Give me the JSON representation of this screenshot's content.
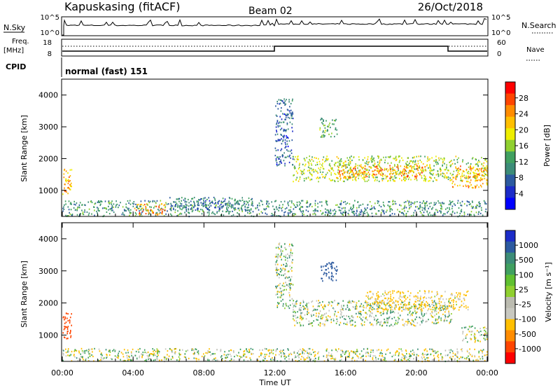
{
  "header": {
    "station": "Kapuskasing (fitACF)",
    "beam": "Beam 02",
    "date": "26/Oct/2018"
  },
  "status_panels": {
    "nsky_label": "N.Sky",
    "nsky_ticks": [
      "10^5",
      "10^0"
    ],
    "nsearch_label": "N.Search",
    "nsearch_ticks": [
      "10^5",
      "10^0"
    ],
    "freq_label": "Freq.",
    "freq_unit": "[MHz]",
    "freq_ticks": [
      "18",
      "8"
    ],
    "nave_label": "Nave",
    "nave_ticks": [
      "60",
      "0"
    ],
    "cpid_label": "CPID",
    "cpid_text": "normal (fast) 151"
  },
  "xaxis": {
    "label": "Time UT",
    "ticks": [
      "00:00",
      "04:00",
      "08:00",
      "12:00",
      "16:00",
      "20:00",
      "00:00"
    ]
  },
  "power_panel": {
    "ylabel": "Slant Range [km]",
    "yticks": [
      "4000",
      "3000",
      "2000",
      "1000"
    ],
    "colorbar_label": "Power [dB]",
    "colorbar_ticks": [
      "28",
      "24",
      "20",
      "16",
      "12",
      "8",
      "4"
    ],
    "colors": [
      "#ff0000",
      "#ff4500",
      "#ff8c00",
      "#ffbf00",
      "#eeee00",
      "#90d030",
      "#40a060",
      "#3c8c78",
      "#2c5aa0",
      "#1c2cc8",
      "#0000ff"
    ]
  },
  "velocity_panel": {
    "ylabel": "Slant Range [km]",
    "yticks": [
      "4000",
      "3000",
      "2000",
      "1000"
    ],
    "colorbar_label": "Velocity [m s⁻¹]",
    "colorbar_ticks": [
      "1000",
      "500",
      "100",
      "25",
      "-25",
      "-100",
      "-500",
      "-1000"
    ],
    "colors": [
      "#1c2cc8",
      "#2c5aa0",
      "#3c8c78",
      "#40a060",
      "#60c030",
      "#90d030",
      "#bbbbb0",
      "#c8c8c0",
      "#ffbf00",
      "#ff8c00",
      "#ff4500",
      "#ff0000"
    ]
  },
  "chart_data": [
    {
      "type": "heatmap",
      "title": "Kapuskasing (fitACF) Beam 02 26/Oct/2018",
      "variable": "Power",
      "unit": "dB",
      "xlabel": "Time UT",
      "ylabel": "Slant Range [km]",
      "xlim": [
        0,
        24
      ],
      "ylim": [
        180,
        4500
      ],
      "clim": [
        0,
        30
      ],
      "echo_regions": [
        {
          "t_start": 0.0,
          "t_end": 0.5,
          "r_min": 900,
          "r_max": 1700,
          "power": 22
        },
        {
          "t_start": 0.0,
          "t_end": 24.0,
          "r_min": 200,
          "r_max": 700,
          "power": 10
        },
        {
          "t_start": 4.0,
          "t_end": 5.8,
          "r_min": 250,
          "r_max": 600,
          "power": 24
        },
        {
          "t_start": 6.0,
          "t_end": 11.0,
          "r_min": 400,
          "r_max": 800,
          "power": 8
        },
        {
          "t_start": 12.0,
          "t_end": 13.0,
          "r_min": 1800,
          "r_max": 3900,
          "power": 6
        },
        {
          "t_start": 13.0,
          "t_end": 24.0,
          "r_min": 1300,
          "r_max": 2100,
          "power": 16
        },
        {
          "t_start": 14.5,
          "t_end": 15.5,
          "r_min": 2700,
          "r_max": 3300,
          "power": 12
        },
        {
          "t_start": 15.5,
          "t_end": 20.5,
          "r_min": 1400,
          "r_max": 1800,
          "power": 24
        },
        {
          "t_start": 22.0,
          "t_end": 24.0,
          "r_min": 1100,
          "r_max": 1800,
          "power": 22
        }
      ]
    },
    {
      "type": "heatmap",
      "variable": "Velocity",
      "unit": "m s-1",
      "xlabel": "Time UT",
      "ylabel": "Slant Range [km]",
      "xlim": [
        0,
        24
      ],
      "ylim": [
        180,
        4500
      ],
      "clim": [
        -1000,
        1000
      ],
      "echo_regions": [
        {
          "t_start": 0.0,
          "t_end": 0.5,
          "r_min": 900,
          "r_max": 1700,
          "velocity": -500
        },
        {
          "t_start": 0.0,
          "t_end": 24.0,
          "r_min": 200,
          "r_max": 600,
          "velocity": -25
        },
        {
          "t_start": 12.0,
          "t_end": 13.0,
          "r_min": 1800,
          "r_max": 3900,
          "velocity": 0
        },
        {
          "t_start": 13.0,
          "t_end": 22.0,
          "r_min": 1300,
          "r_max": 2100,
          "velocity": 0
        },
        {
          "t_start": 14.5,
          "t_end": 15.5,
          "r_min": 2700,
          "r_max": 3300,
          "velocity": 500
        },
        {
          "t_start": 17.0,
          "t_end": 23.0,
          "r_min": 1800,
          "r_max": 2400,
          "velocity": -100
        },
        {
          "t_start": 22.5,
          "t_end": 24.0,
          "r_min": 800,
          "r_max": 1300,
          "velocity": -25
        }
      ]
    }
  ]
}
